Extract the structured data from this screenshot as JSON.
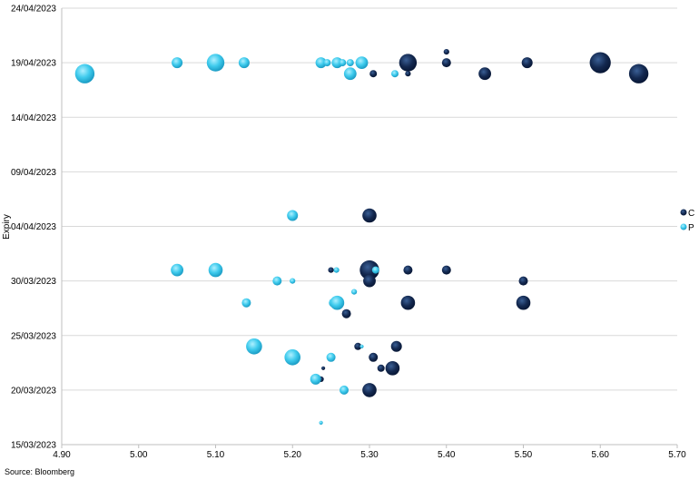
{
  "chart_data": {
    "type": "scatter",
    "subtype": "bubble",
    "ylabel": "Expiry",
    "xlabel": "",
    "xlim": [
      4.9,
      5.7
    ],
    "x_ticks": [
      "4.90",
      "5.00",
      "5.10",
      "5.20",
      "5.30",
      "5.40",
      "5.50",
      "5.60",
      "5.70"
    ],
    "y_ticks": [
      "15/03/2023",
      "20/03/2023",
      "25/03/2023",
      "30/03/2023",
      "04/04/2023",
      "09/04/2023",
      "14/04/2023",
      "19/04/2023",
      "24/04/2023"
    ],
    "ylim": [
      "2023-03-15",
      "2023-04-24"
    ],
    "grid": "horizontal",
    "legend_position": "right",
    "series": [
      {
        "name": "C",
        "color": "#0f2347",
        "points": [
          {
            "x": 5.4,
            "y": "2023-04-20",
            "size": 2
          },
          {
            "x": 5.35,
            "y": "2023-04-19",
            "size": 9
          },
          {
            "x": 5.4,
            "y": "2023-04-19",
            "size": 4
          },
          {
            "x": 5.505,
            "y": "2023-04-19",
            "size": 5
          },
          {
            "x": 5.6,
            "y": "2023-04-19",
            "size": 11
          },
          {
            "x": 5.305,
            "y": "2023-04-18",
            "size": 3
          },
          {
            "x": 5.35,
            "y": "2023-04-18",
            "size": 2
          },
          {
            "x": 5.45,
            "y": "2023-04-18",
            "size": 6
          },
          {
            "x": 5.65,
            "y": "2023-04-18",
            "size": 10
          },
          {
            "x": 5.3,
            "y": "2023-04-05",
            "size": 7
          },
          {
            "x": 5.25,
            "y": "2023-03-31",
            "size": 2
          },
          {
            "x": 5.3,
            "y": "2023-03-31",
            "size": 10
          },
          {
            "x": 5.35,
            "y": "2023-03-31",
            "size": 4
          },
          {
            "x": 5.4,
            "y": "2023-03-31",
            "size": 4
          },
          {
            "x": 5.3,
            "y": "2023-03-30",
            "size": 6
          },
          {
            "x": 5.5,
            "y": "2023-03-30",
            "size": 4
          },
          {
            "x": 5.35,
            "y": "2023-03-28",
            "size": 7
          },
          {
            "x": 5.5,
            "y": "2023-03-28",
            "size": 7
          },
          {
            "x": 5.27,
            "y": "2023-03-27",
            "size": 4
          },
          {
            "x": 5.285,
            "y": "2023-03-24",
            "size": 3
          },
          {
            "x": 5.335,
            "y": "2023-03-24",
            "size": 5
          },
          {
            "x": 5.305,
            "y": "2023-03-23",
            "size": 4
          },
          {
            "x": 5.24,
            "y": "2023-03-22",
            "size": 1
          },
          {
            "x": 5.315,
            "y": "2023-03-22",
            "size": 3
          },
          {
            "x": 5.33,
            "y": "2023-03-22",
            "size": 7
          },
          {
            "x": 5.237,
            "y": "2023-03-21",
            "size": 2
          },
          {
            "x": 5.3,
            "y": "2023-03-20",
            "size": 7
          }
        ]
      },
      {
        "name": "P",
        "color": "#2ec4e6",
        "points": [
          {
            "x": 5.05,
            "y": "2023-04-19",
            "size": 5
          },
          {
            "x": 5.1,
            "y": "2023-04-19",
            "size": 9
          },
          {
            "x": 5.137,
            "y": "2023-04-19",
            "size": 5
          },
          {
            "x": 5.237,
            "y": "2023-04-19",
            "size": 5
          },
          {
            "x": 5.245,
            "y": "2023-04-19",
            "size": 3
          },
          {
            "x": 5.258,
            "y": "2023-04-19",
            "size": 5
          },
          {
            "x": 5.265,
            "y": "2023-04-19",
            "size": 3
          },
          {
            "x": 5.275,
            "y": "2023-04-19",
            "size": 3
          },
          {
            "x": 5.29,
            "y": "2023-04-19",
            "size": 6
          },
          {
            "x": 4.93,
            "y": "2023-04-18",
            "size": 10
          },
          {
            "x": 5.275,
            "y": "2023-04-18",
            "size": 6
          },
          {
            "x": 5.333,
            "y": "2023-04-18",
            "size": 3
          },
          {
            "x": 5.2,
            "y": "2023-04-05",
            "size": 5
          },
          {
            "x": 5.05,
            "y": "2023-03-31",
            "size": 6
          },
          {
            "x": 5.1,
            "y": "2023-03-31",
            "size": 7
          },
          {
            "x": 5.257,
            "y": "2023-03-31",
            "size": 2
          },
          {
            "x": 5.308,
            "y": "2023-03-31",
            "size": 3
          },
          {
            "x": 5.18,
            "y": "2023-03-30",
            "size": 4
          },
          {
            "x": 5.2,
            "y": "2023-03-30",
            "size": 2
          },
          {
            "x": 5.28,
            "y": "2023-03-29",
            "size": 2
          },
          {
            "x": 5.14,
            "y": "2023-03-28",
            "size": 4
          },
          {
            "x": 5.253,
            "y": "2023-03-28",
            "size": 4
          },
          {
            "x": 5.258,
            "y": "2023-03-28",
            "size": 7
          },
          {
            "x": 5.15,
            "y": "2023-03-24",
            "size": 8
          },
          {
            "x": 5.29,
            "y": "2023-03-24",
            "size": 1
          },
          {
            "x": 5.2,
            "y": "2023-03-23",
            "size": 8
          },
          {
            "x": 5.25,
            "y": "2023-03-23",
            "size": 4
          },
          {
            "x": 5.23,
            "y": "2023-03-21",
            "size": 5
          },
          {
            "x": 5.267,
            "y": "2023-03-20",
            "size": 4
          },
          {
            "x": 5.237,
            "y": "2023-03-17",
            "size": 1
          }
        ]
      }
    ]
  },
  "footer": {
    "source": "Source: Bloomberg"
  }
}
